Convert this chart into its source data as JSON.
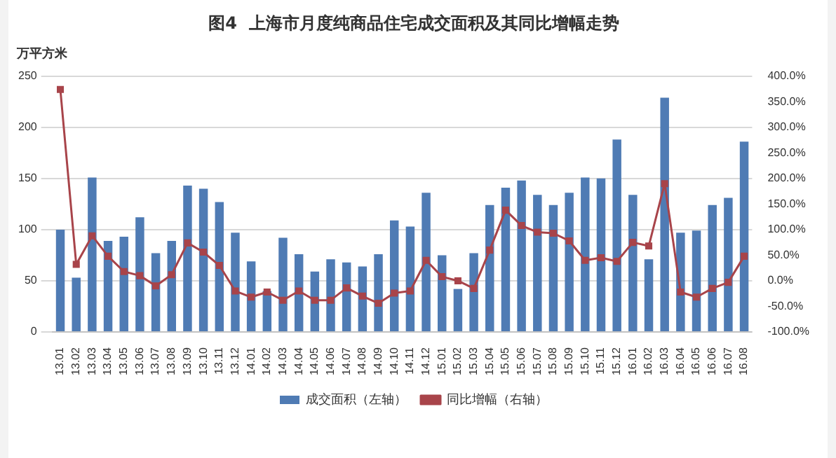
{
  "chart_data": {
    "type": "bar",
    "title": "图4  上海市月度纯商品住宅成交面积及其同比增幅走势",
    "ylabel": "万平方米",
    "categories": [
      "13.01",
      "13.02",
      "13.03",
      "13.04",
      "13.05",
      "13.06",
      "13.07",
      "13.08",
      "13.09",
      "13.10",
      "13.11",
      "13.12",
      "14.01",
      "14.02",
      "14.03",
      "14.04",
      "14.05",
      "14.06",
      "14.07",
      "14.08",
      "14.09",
      "14.10",
      "14.11",
      "14.12",
      "15.01",
      "15.02",
      "15.03",
      "15.04",
      "15.05",
      "15.06",
      "15.07",
      "15.08",
      "15.09",
      "15.10",
      "15.11",
      "15.12",
      "16.01",
      "16.02",
      "16.03",
      "16.04",
      "16.05",
      "16.06",
      "16.07",
      "16.08"
    ],
    "series": [
      {
        "name": "成交面积（左轴）",
        "color": "#4f7bb4",
        "values": [
          100,
          53,
          151,
          89,
          93,
          112,
          77,
          89,
          143,
          140,
          127,
          97,
          69,
          40,
          92,
          76,
          59,
          71,
          68,
          64,
          76,
          109,
          103,
          136,
          75,
          42,
          77,
          124,
          141,
          148,
          134,
          124,
          136,
          151,
          150,
          188,
          134,
          71,
          229,
          97,
          99,
          124,
          131,
          186
        ]
      },
      {
        "name": "同比增幅（右轴）",
        "type": "line",
        "axis": "y2",
        "color": "#a8444a",
        "marker": "square",
        "values": [
          374,
          32,
          88,
          48,
          18,
          10,
          -10,
          12,
          74,
          56,
          30,
          -20,
          -32,
          -22,
          -38,
          -20,
          -38,
          -38,
          -14,
          -30,
          -44,
          -24,
          -20,
          40,
          8,
          0,
          -15,
          60,
          138,
          108,
          95,
          93,
          78,
          40,
          45,
          38,
          75,
          68,
          190,
          -22,
          -32,
          -15,
          -3,
          48
        ]
      }
    ],
    "ylim": [
      0,
      250
    ],
    "yticks": [
      0,
      50,
      100,
      150,
      200,
      250
    ],
    "y2lim": [
      -100,
      400
    ],
    "y2ticks": [
      {
        "value": -100,
        "label": "-100.0%"
      },
      {
        "value": -50,
        "label": "-50.0%"
      },
      {
        "value": 0,
        "label": "0.0%"
      },
      {
        "value": 50,
        "label": "50.0%"
      },
      {
        "value": 100,
        "label": "100.0%"
      },
      {
        "value": 150,
        "label": "150.0%"
      },
      {
        "value": 200,
        "label": "200.0%"
      },
      {
        "value": 250,
        "label": "250.0%"
      },
      {
        "value": 300,
        "label": "300.0%"
      },
      {
        "value": 350,
        "label": "350.0%"
      },
      {
        "value": 400,
        "label": "400.0%"
      }
    ],
    "grid": "y",
    "legend": "bottom"
  }
}
